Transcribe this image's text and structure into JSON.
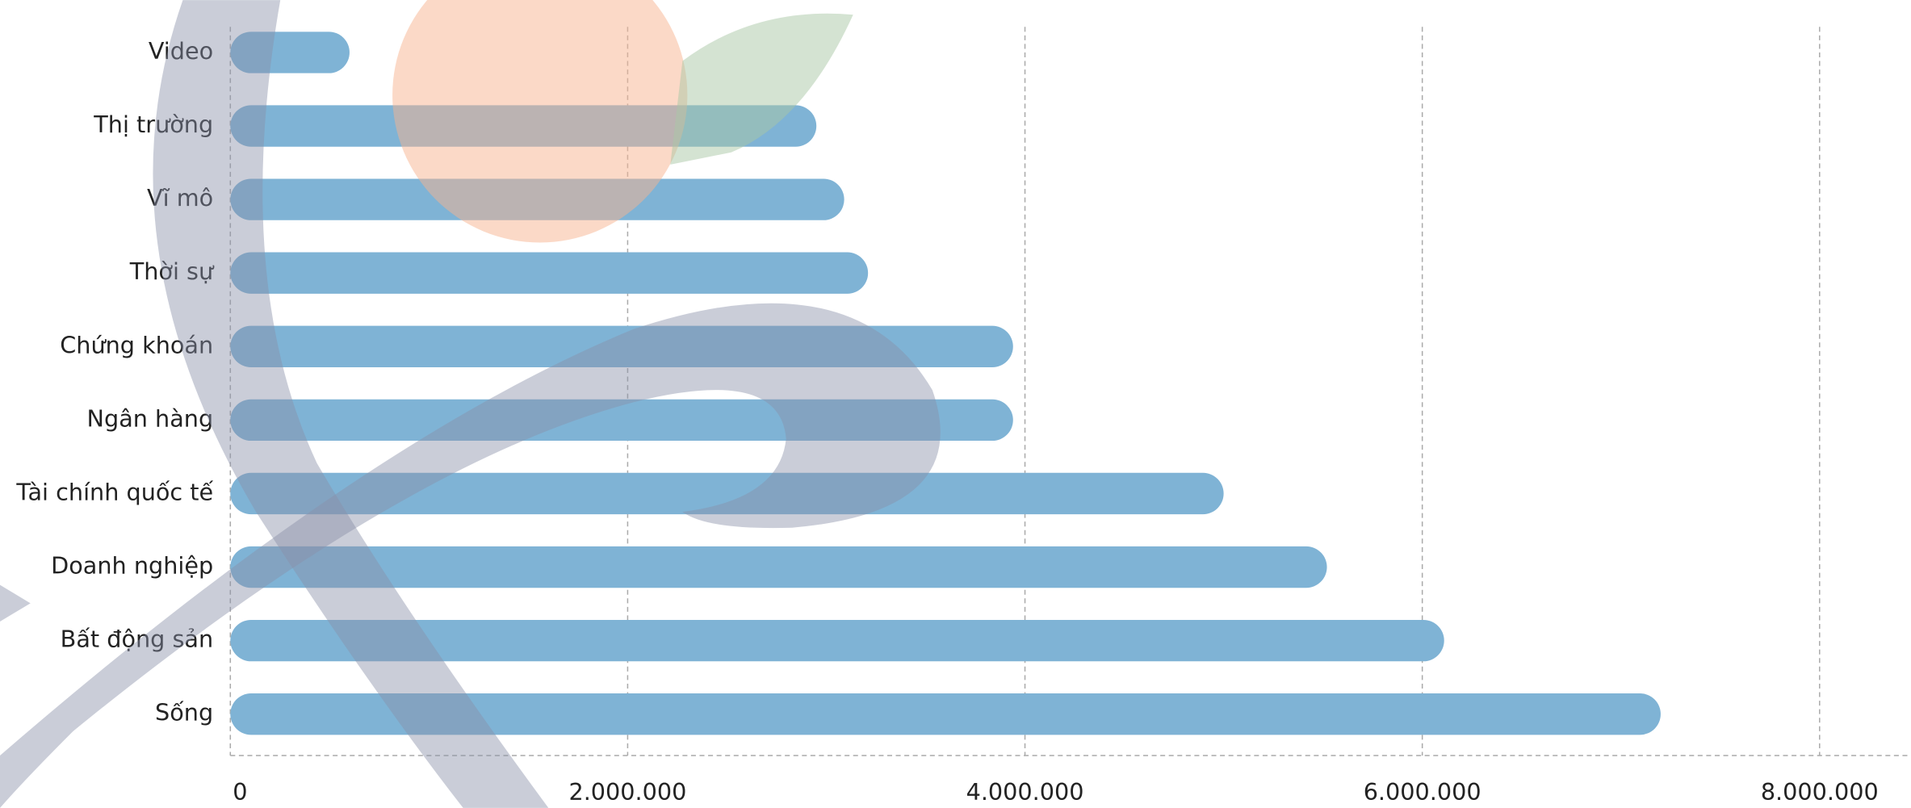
{
  "chart_data": {
    "type": "bar",
    "orientation": "horizontal",
    "categories": [
      "Video",
      "Thị trường",
      "Vĩ mô",
      "Thời sự",
      "Chứng khoán",
      "Ngân hàng",
      "Tài chính quốc tế",
      "Doanh nghiệp",
      "Bất động sản",
      "Sống"
    ],
    "values": [
      600000,
      2950000,
      3090000,
      3210000,
      3940000,
      3940000,
      5000000,
      5520000,
      6110000,
      7200000
    ],
    "color": "#7fb3d5",
    "xlim": [
      0,
      8000000
    ],
    "xticks": [
      0,
      {
        "value": 2000000,
        "label": "2.000.000"
      },
      {
        "value": 4000000,
        "label": "4.000.000"
      },
      {
        "value": 6000000,
        "label": "6.000.000"
      },
      {
        "value": 8000000,
        "label": "8.000.000"
      }
    ],
    "grid": true
  }
}
